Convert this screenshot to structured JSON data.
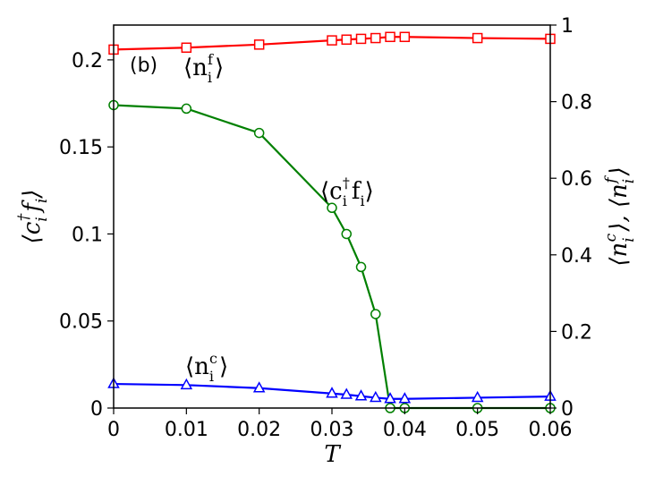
{
  "chart_data": {
    "type": "line",
    "panel_label": "(b)",
    "x": [
      0,
      0.01,
      0.02,
      0.03,
      0.032,
      0.034,
      0.036,
      0.038,
      0.04,
      0.05,
      0.06
    ],
    "xlabel": "T",
    "xlim": [
      0,
      0.06
    ],
    "xticks": [
      0,
      0.01,
      0.02,
      0.03,
      0.04,
      0.05,
      0.06
    ],
    "xtick_labels": [
      "0",
      "0.01",
      "0.02",
      "0.03",
      "0.04",
      "0.05",
      "0.06"
    ],
    "ylabel_left": "⟨c_i†f_i⟩",
    "ylim_left": [
      0,
      0.22
    ],
    "yticks_left": [
      0,
      0.05,
      0.1,
      0.15,
      0.2
    ],
    "ytick_labels_left": [
      "0",
      "0.05",
      "0.1",
      "0.15",
      "0.2"
    ],
    "ylabel_right": "⟨n_i^c⟩, ⟨n_i^f⟩",
    "ylim_right": [
      0,
      1
    ],
    "yticks_right": [
      0,
      0.2,
      0.4,
      0.6,
      0.8,
      1
    ],
    "ytick_labels_right": [
      "0",
      "0.2",
      "0.4",
      "0.6",
      "0.8",
      "1"
    ],
    "grid": false,
    "series": [
      {
        "name": "⟨n_i^f⟩",
        "axis": "right",
        "color": "#ff0000",
        "marker": "square",
        "x": [
          0,
          0.01,
          0.02,
          0.03,
          0.032,
          0.034,
          0.036,
          0.038,
          0.04,
          0.05,
          0.06
        ],
        "values": [
          0.936,
          0.941,
          0.949,
          0.96,
          0.962,
          0.964,
          0.966,
          0.969,
          0.969,
          0.966,
          0.964
        ]
      },
      {
        "name": "⟨c_i†f_i⟩",
        "axis": "left",
        "color": "#008000",
        "marker": "circle",
        "x": [
          0,
          0.01,
          0.02,
          0.03,
          0.032,
          0.034,
          0.036,
          0.038,
          0.04,
          0.05,
          0.06
        ],
        "values": [
          0.174,
          0.172,
          0.158,
          0.115,
          0.1,
          0.081,
          0.054,
          0.0,
          0.0,
          0.0,
          0.0
        ]
      },
      {
        "name": "⟨n_i^c⟩",
        "axis": "right",
        "color": "#0000ff",
        "marker": "triangle",
        "x": [
          0,
          0.01,
          0.02,
          0.03,
          0.032,
          0.034,
          0.036,
          0.038,
          0.04,
          0.05,
          0.06
        ],
        "values": [
          0.063,
          0.06,
          0.052,
          0.038,
          0.035,
          0.031,
          0.027,
          0.024,
          0.024,
          0.027,
          0.03
        ]
      }
    ],
    "annotations": {
      "nf": {
        "base": "⟨n",
        "sub": "i",
        "sup": "f",
        "close": "⟩"
      },
      "cf": {
        "base": "⟨c",
        "sub": "i",
        "sup": "†",
        "mid": "f",
        "sub2": "i",
        "close": "⟩"
      },
      "nc": {
        "base": "⟨n",
        "sub": "i",
        "sup": "c",
        "close": "⟩"
      }
    }
  }
}
